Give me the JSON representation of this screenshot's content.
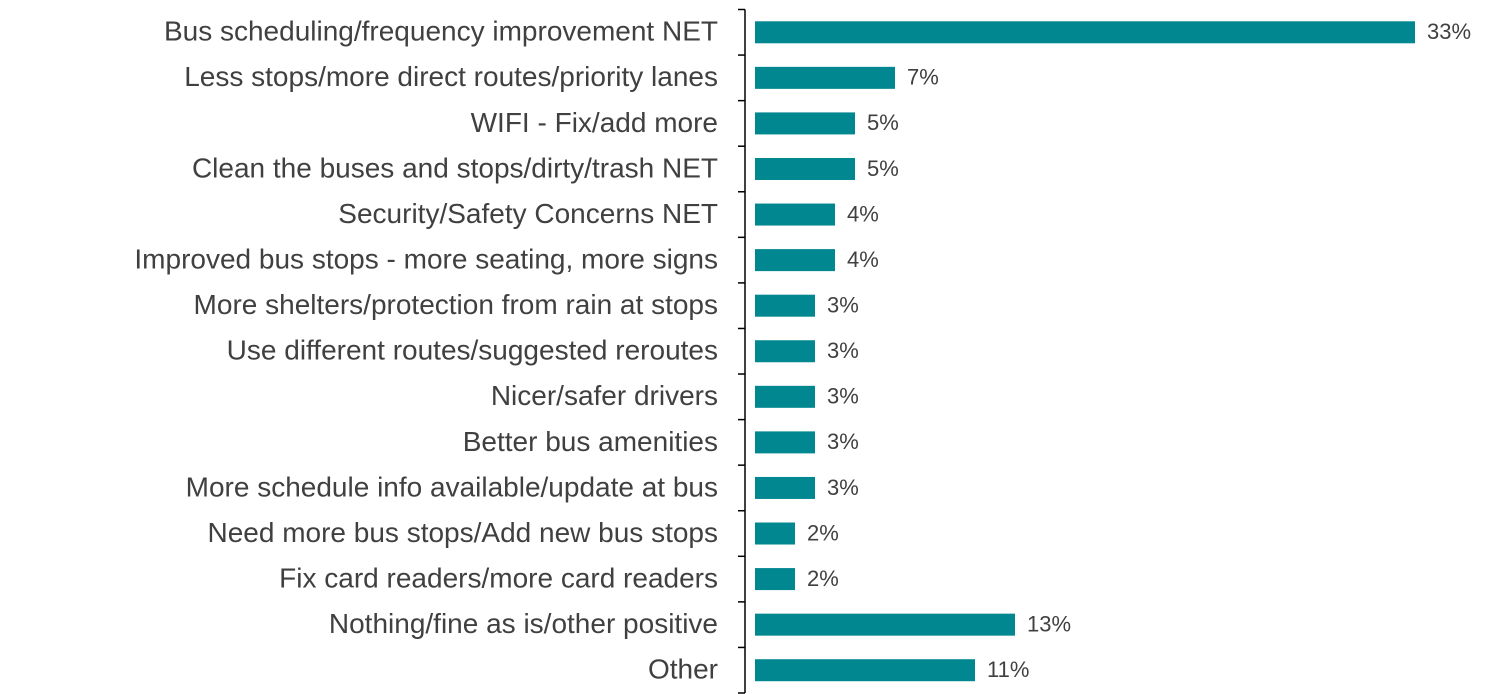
{
  "chart_data": {
    "type": "barh",
    "categories": [
      "Bus scheduling/frequency improvement NET",
      "Less stops/more direct routes/priority lanes",
      "WIFI - Fix/add more",
      "Clean the buses and stops/dirty/trash NET",
      "Security/Safety Concerns NET",
      "Improved bus stops - more seating, more signs",
      "More shelters/protection from rain at stops",
      "Use different routes/suggested reroutes",
      "Nicer/safer drivers",
      "Better bus amenities",
      "More schedule info available/update at bus",
      "Need more bus stops/Add new bus stops",
      "Fix card readers/more card readers",
      "Nothing/fine as is/other positive",
      "Other"
    ],
    "values": [
      33,
      7,
      5,
      5,
      4,
      4,
      3,
      3,
      3,
      3,
      3,
      2,
      2,
      13,
      11
    ],
    "value_labels": [
      "33%",
      "7%",
      "5%",
      "5%",
      "4%",
      "4%",
      "3%",
      "3%",
      "3%",
      "3%",
      "3%",
      "2%",
      "2%",
      "13%",
      "11%"
    ],
    "color": "#00878f",
    "xlim": [
      0,
      33
    ]
  }
}
